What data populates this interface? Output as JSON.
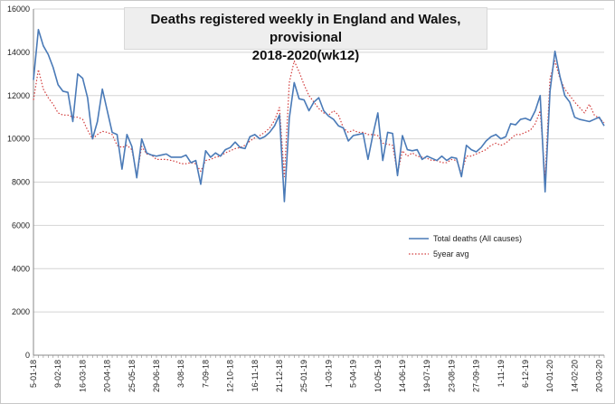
{
  "chart_data": {
    "type": "line",
    "title": "Deaths registered weekly in England and Wales, provisional",
    "subtitle": "2018-2020(wk12)",
    "xlabel": "",
    "ylabel": "",
    "ylim": [
      0,
      16000
    ],
    "yticks": [
      "0",
      "2000",
      "4000",
      "6000",
      "8000",
      "10000",
      "12000",
      "14000",
      "16000"
    ],
    "grid": true,
    "legend_position": "center-right",
    "xtick_labels": [
      "5-01-18",
      "9-02-18",
      "16-03-18",
      "20-04-18",
      "25-05-18",
      "29-06-18",
      "3-08-18",
      "7-09-18",
      "12-10-18",
      "16-11-18",
      "21-12-18",
      "25-01-19",
      "1-03-19",
      "5-04-19",
      "10-05-19",
      "14-06-19",
      "19-07-19",
      "23-08-19",
      "27-09-19",
      "1-11-19",
      "6-12-19",
      "10-01-20",
      "14-02-20",
      "20-03-20"
    ],
    "series": [
      {
        "name": "Total deaths (All causes)",
        "color": "#4a7ab7",
        "style": "solid",
        "values": [
          12723,
          15050,
          14300,
          13900,
          13300,
          12500,
          12200,
          12150,
          10800,
          13000,
          12800,
          11900,
          10000,
          10800,
          12300,
          11300,
          10300,
          10200,
          8600,
          10200,
          9650,
          8200,
          10000,
          9350,
          9250,
          9200,
          9250,
          9300,
          9150,
          9150,
          9150,
          9250,
          8900,
          9000,
          7900,
          9450,
          9150,
          9350,
          9200,
          9500,
          9600,
          9850,
          9600,
          9550,
          10100,
          10200,
          10000,
          10100,
          10300,
          10600,
          11100,
          7100,
          10950,
          12600,
          11850,
          11800,
          11300,
          11700,
          11900,
          11300,
          11050,
          10900,
          10600,
          10500,
          9900,
          10150,
          10200,
          10250,
          9050,
          10200,
          11200,
          9000,
          10300,
          10250,
          8300,
          10150,
          9500,
          9450,
          9500,
          9050,
          9200,
          9100,
          9000,
          9200,
          9000,
          9150,
          9100,
          8250,
          9700,
          9500,
          9400,
          9600,
          9900,
          10100,
          10200,
          10000,
          10100,
          10700,
          10650,
          10900,
          10950,
          10850,
          11300,
          12000,
          7550,
          12200,
          14050,
          12900,
          12000,
          11700,
          11000,
          10900,
          10850,
          10800,
          10900,
          11000,
          10600
        ]
      },
      {
        "name": "5year avg",
        "color": "#d23c3c",
        "style": "dotted",
        "values": [
          11800,
          13200,
          12300,
          11900,
          11600,
          11200,
          11100,
          11100,
          11000,
          11000,
          10900,
          10400,
          10000,
          10200,
          10350,
          10300,
          10200,
          9700,
          9600,
          9700,
          9500,
          8300,
          9650,
          9300,
          9250,
          9050,
          9050,
          9050,
          9000,
          8950,
          8850,
          8850,
          8900,
          8850,
          8500,
          9000,
          9050,
          9150,
          9200,
          9350,
          9450,
          9550,
          9600,
          9700,
          9900,
          10050,
          10150,
          10300,
          10500,
          10850,
          11450,
          8250,
          12600,
          13600,
          13100,
          12500,
          12000,
          11700,
          11400,
          11200,
          11100,
          11300,
          11100,
          10500,
          10300,
          10400,
          10300,
          10300,
          10200,
          10200,
          10150,
          9800,
          9750,
          9700,
          8400,
          9450,
          9200,
          9350,
          9200,
          9150,
          9100,
          9000,
          9000,
          8900,
          8900,
          9050,
          9000,
          8400,
          9200,
          9200,
          9300,
          9400,
          9500,
          9700,
          9800,
          9700,
          9800,
          10000,
          10200,
          10200,
          10300,
          10400,
          10700,
          11300,
          8200,
          12800,
          13600,
          12800,
          12300,
          12000,
          11700,
          11450,
          11200,
          11600,
          11100,
          10950,
          10750
        ]
      }
    ]
  }
}
